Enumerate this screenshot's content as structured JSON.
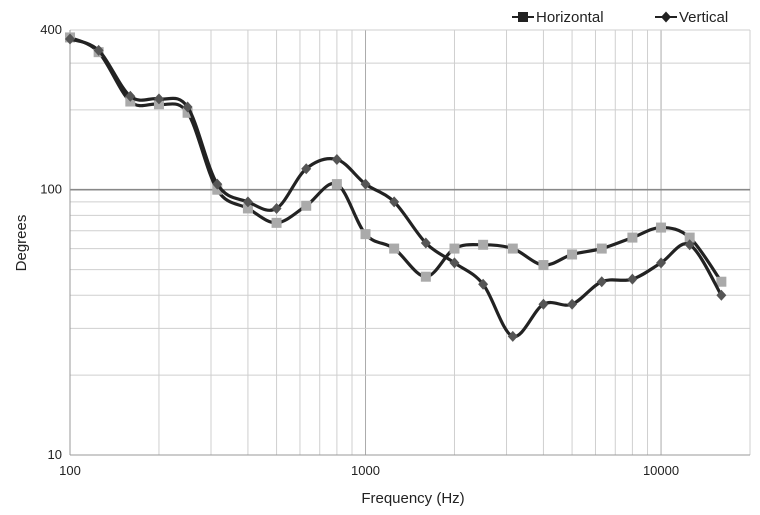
{
  "chart_data": {
    "type": "line",
    "title": "",
    "xlabel": "Frequency (Hz)",
    "ylabel": "Degrees",
    "x_scale": "log",
    "y_scale": "log",
    "xlim": [
      100,
      20000
    ],
    "ylim": [
      10,
      400
    ],
    "x_tick_labels": [
      "100",
      "1000",
      "10000"
    ],
    "y_tick_labels": [
      "10",
      "100",
      "400"
    ],
    "grid": true,
    "legend_position": "top-right",
    "x": [
      100,
      125,
      160,
      200,
      250,
      315,
      400,
      500,
      630,
      800,
      1000,
      1250,
      1600,
      2000,
      2500,
      3150,
      4000,
      5000,
      6300,
      8000,
      10000,
      12500,
      16000
    ],
    "series": [
      {
        "name": "Horizontal",
        "marker": "square",
        "line_color": "#222222",
        "marker_color": "#aaaaaa",
        "values": [
          375,
          330,
          215,
          210,
          195,
          100,
          85,
          75,
          87,
          105,
          68,
          60,
          47,
          60,
          62,
          60,
          52,
          57,
          60,
          66,
          72,
          66,
          45
        ]
      },
      {
        "name": "Vertical",
        "marker": "diamond",
        "line_color": "#222222",
        "marker_color": "#555555",
        "values": [
          370,
          335,
          225,
          220,
          205,
          105,
          90,
          85,
          120,
          130,
          105,
          90,
          63,
          53,
          44,
          28,
          37,
          37,
          45,
          46,
          53,
          62,
          40
        ]
      }
    ]
  }
}
